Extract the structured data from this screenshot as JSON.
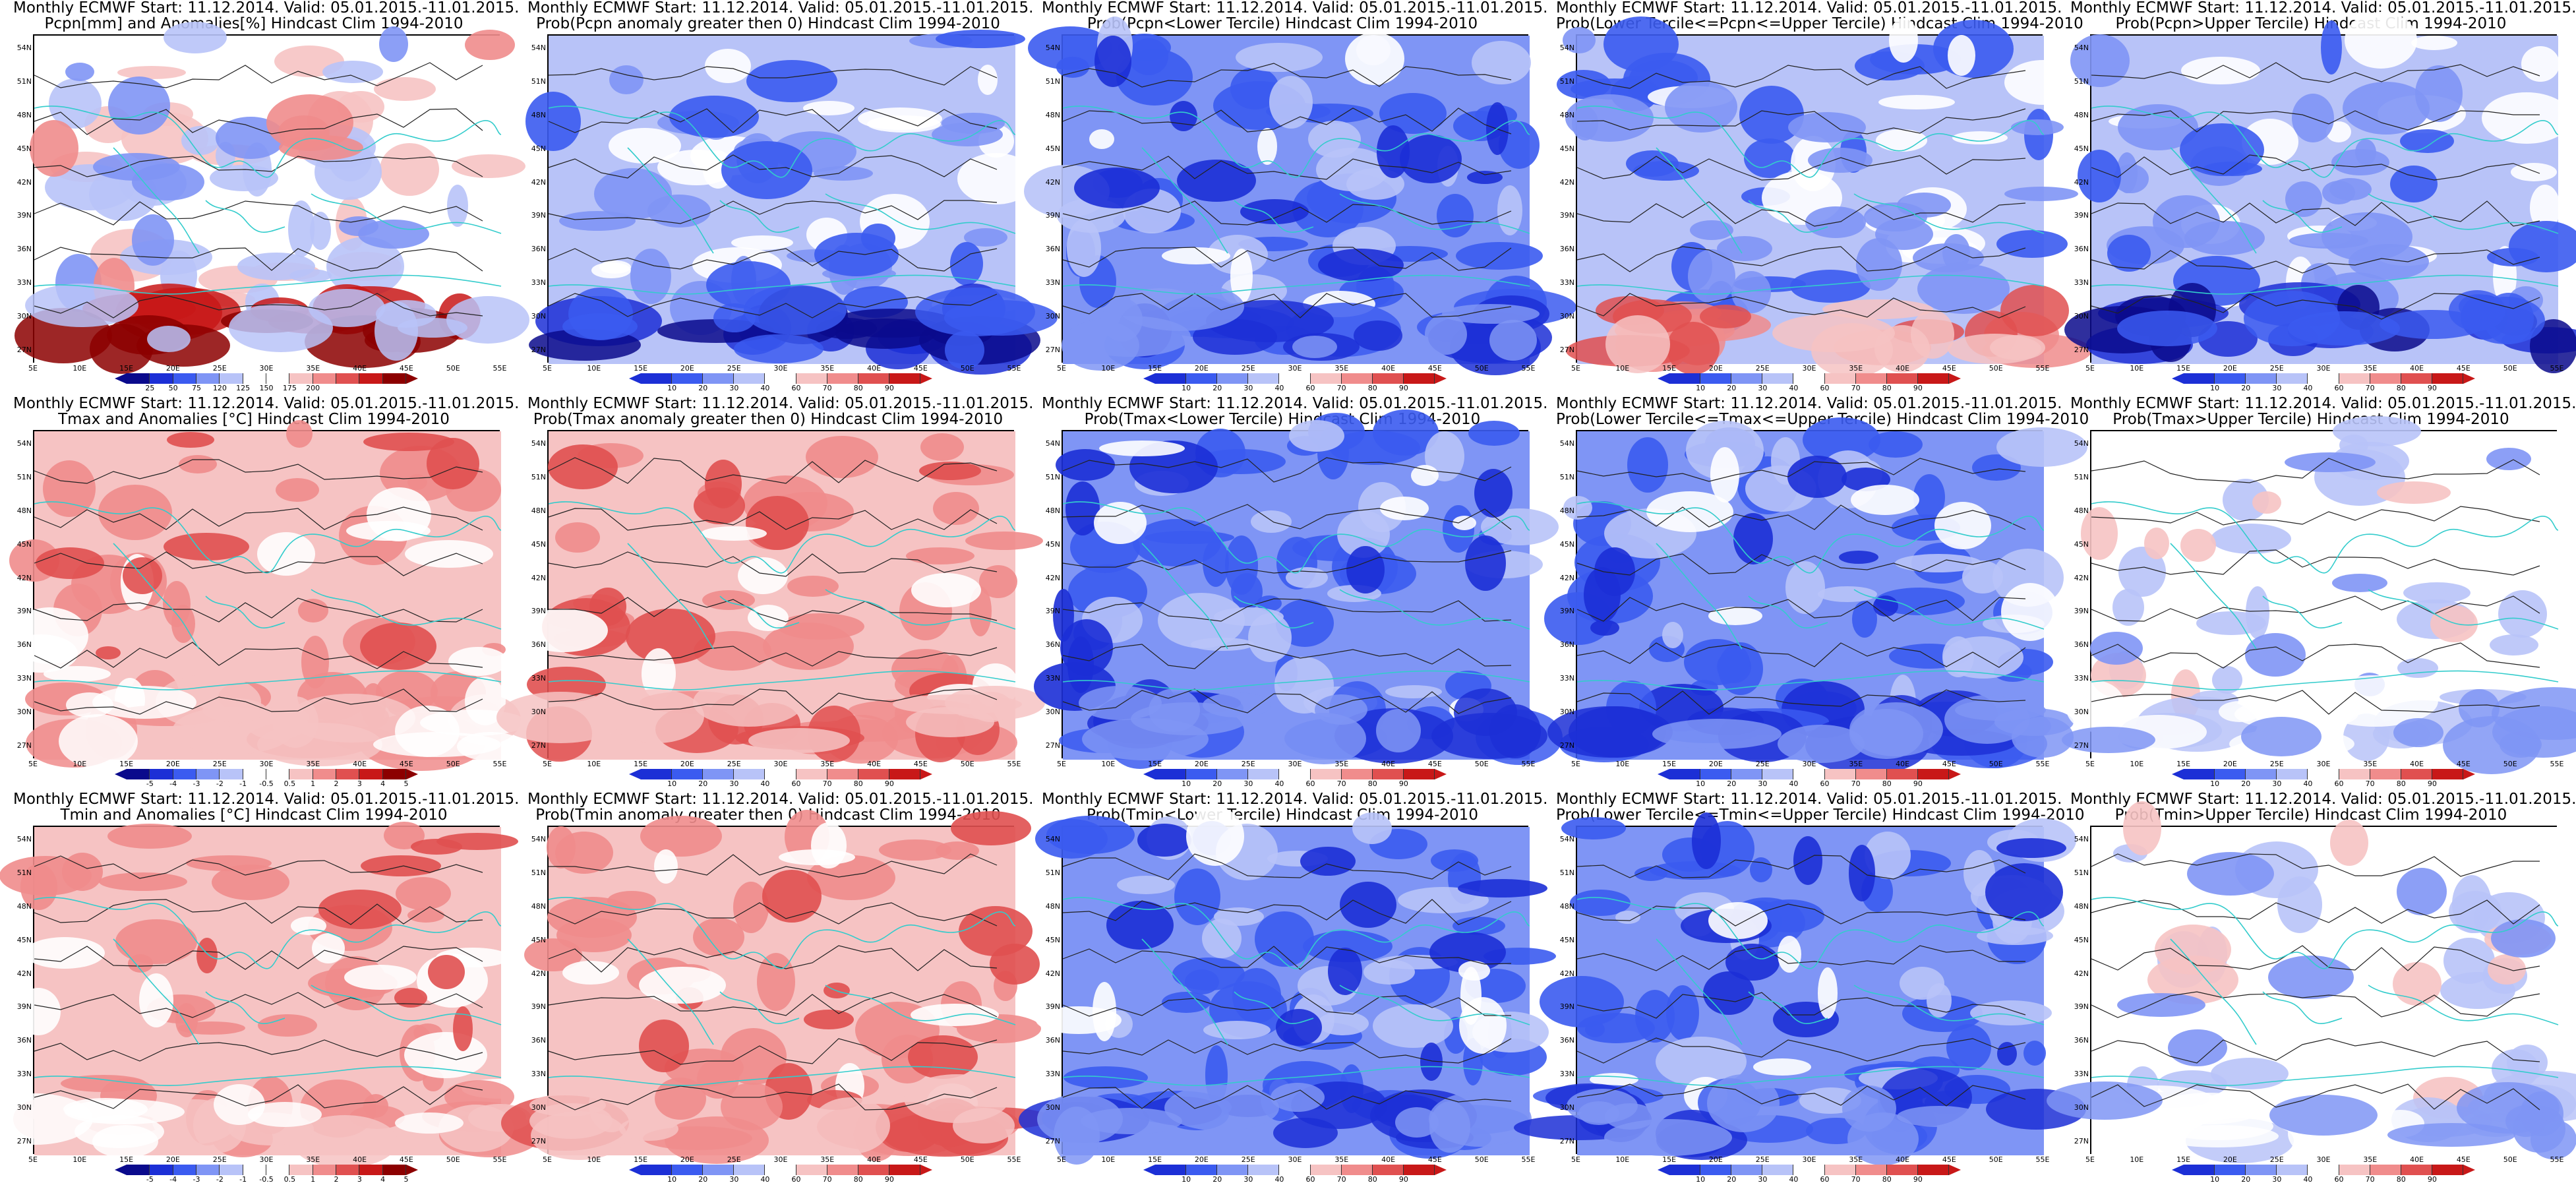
{
  "panels": [
    {
      "t1": "Monthly ECMWF Start: 11.12.2014. Valid: 05.01.2015.-11.01.2015.",
      "t2": "Pcpn[mm] and Anomalies[%] Hindcast Clim 1994-2010",
      "scheme": "anom_pcpn",
      "ticks": [
        "25",
        "50",
        "75",
        "120",
        "125",
        "150",
        "175",
        "200"
      ]
    },
    {
      "t1": "Monthly ECMWF Start: 11.12.2014. Valid: 05.01.2015.-11.01.2015.",
      "t2": "Prob(Pcpn anomaly greater then 0) Hindcast Clim 1994-2010",
      "scheme": "prob_blue",
      "ticks": [
        "10",
        "20",
        "30",
        "40",
        "60",
        "70",
        "80",
        "90"
      ]
    },
    {
      "t1": "Monthly ECMWF Start: 11.12.2014. Valid: 05.01.2015.-11.01.2015.",
      "t2": "Prob(Pcpn<Lower Tercile) Hindcast Clim 1994-2010",
      "scheme": "prob_deep",
      "ticks": [
        "10",
        "20",
        "30",
        "40",
        "60",
        "70",
        "80",
        "90"
      ]
    },
    {
      "t1": "Monthly ECMWF Start: 11.12.2014. Valid: 05.01.2015.-11.01.2015.",
      "t2": "Prob(Lower Tercile<=Pcpn<=Upper Tercile) Hindcast Clim 1994-2010",
      "scheme": "prob_mid",
      "ticks": [
        "10",
        "20",
        "30",
        "40",
        "60",
        "70",
        "80",
        "90"
      ]
    },
    {
      "t1": "Monthly ECMWF Start: 11.12.2014. Valid: 05.01.2015.-11.01.2015.",
      "t2": "Prob(Pcpn>Upper Tercile) Hindcast Clim 1994-2010",
      "scheme": "prob_blue",
      "ticks": [
        "10",
        "20",
        "30",
        "40",
        "60",
        "70",
        "80",
        "90"
      ]
    },
    {
      "t1": "Monthly ECMWF Start: 11.12.2014. Valid: 05.01.2015.-11.01.2015.",
      "t2": "Tmax and Anomalies [°C] Hindcast Clim 1994-2010",
      "scheme": "anom_red",
      "ticks": [
        "-5",
        "-4",
        "-3",
        "-2",
        "-1",
        "-0.5",
        "0.5",
        "1",
        "2",
        "3",
        "4",
        "5"
      ]
    },
    {
      "t1": "Monthly ECMWF Start: 11.12.2014. Valid: 05.01.2015.-11.01.2015.",
      "t2": "Prob(Tmax anomaly greater then 0) Hindcast Clim 1994-2010",
      "scheme": "prob_red",
      "ticks": [
        "10",
        "20",
        "30",
        "40",
        "60",
        "70",
        "80",
        "90"
      ]
    },
    {
      "t1": "Monthly ECMWF Start: 11.12.2014. Valid: 05.01.2015.-11.01.2015.",
      "t2": "Prob(Tmax<Lower Tercile) Hindcast Clim 1994-2010",
      "scheme": "prob_deep",
      "ticks": [
        "10",
        "20",
        "30",
        "40",
        "60",
        "70",
        "80",
        "90"
      ]
    },
    {
      "t1": "Monthly ECMWF Start: 11.12.2014. Valid: 05.01.2015.-11.01.2015.",
      "t2": "Prob(Lower Tercile<=Tmax<=Upper Tercile) Hindcast Clim 1994-2010",
      "scheme": "prob_deep",
      "ticks": [
        "10",
        "20",
        "30",
        "40",
        "60",
        "70",
        "80",
        "90"
      ]
    },
    {
      "t1": "Monthly ECMWF Start: 11.12.2014. Valid: 05.01.2015.-11.01.2015.",
      "t2": "Prob(Tmax>Upper Tercile) Hindcast Clim 1994-2010",
      "scheme": "prob_light",
      "ticks": [
        "10",
        "20",
        "30",
        "40",
        "60",
        "70",
        "80",
        "90"
      ]
    },
    {
      "t1": "Monthly ECMWF Start: 11.12.2014. Valid: 05.01.2015.-11.01.2015.",
      "t2": "Tmin and Anomalies [°C] Hindcast Clim 1994-2010",
      "scheme": "anom_red",
      "ticks": [
        "-5",
        "-4",
        "-3",
        "-2",
        "-1",
        "-0.5",
        "0.5",
        "1",
        "2",
        "3",
        "4",
        "5"
      ]
    },
    {
      "t1": "Monthly ECMWF Start: 11.12.2014. Valid: 05.01.2015.-11.01.2015.",
      "t2": "Prob(Tmin anomaly greater then 0) Hindcast Clim 1994-2010",
      "scheme": "prob_red",
      "ticks": [
        "10",
        "20",
        "30",
        "40",
        "60",
        "70",
        "80",
        "90"
      ]
    },
    {
      "t1": "Monthly ECMWF Start: 11.12.2014. Valid: 05.01.2015.-11.01.2015.",
      "t2": "Prob(Tmin<Lower Tercile) Hindcast Clim 1994-2010",
      "scheme": "prob_deep",
      "ticks": [
        "10",
        "20",
        "30",
        "40",
        "60",
        "70",
        "80",
        "90"
      ]
    },
    {
      "t1": "Monthly ECMWF Start: 11.12.2014. Valid: 05.01.2015.-11.01.2015.",
      "t2": "Prob(Lower Tercile<=Tmin<=Upper Tercile) Hindcast Clim 1994-2010",
      "scheme": "prob_deep",
      "ticks": [
        "10",
        "20",
        "30",
        "40",
        "60",
        "70",
        "80",
        "90"
      ]
    },
    {
      "t1": "Monthly ECMWF Start: 11.12.2014. Valid: 05.01.2015.-11.01.2015.",
      "t2": "Prob(Tmin>Upper Tercile) Hindcast Clim 1994-2010",
      "scheme": "prob_light",
      "ticks": [
        "10",
        "20",
        "30",
        "40",
        "60",
        "70",
        "80",
        "90"
      ]
    }
  ],
  "lat_labels": [
    "54N",
    "51N",
    "48N",
    "45N",
    "42N",
    "39N",
    "36N",
    "33N",
    "30N",
    "27N"
  ],
  "lon_labels": [
    "5E",
    "10E",
    "15E",
    "20E",
    "25E",
    "30E",
    "35E",
    "40E",
    "45E",
    "50E",
    "55E"
  ],
  "palettes": {
    "blue_red": [
      "#0a0a8c",
      "#1c2fd6",
      "#3b5bf0",
      "#7f95f5",
      "#b8c3f8",
      "#ffffff",
      "#ffffff",
      "#f6c3c3",
      "#f08c8c",
      "#e05050",
      "#c81818",
      "#8c0000"
    ],
    "prob": [
      "#1c2fd6",
      "#3b5bf0",
      "#7f95f5",
      "#b8c3f8",
      "#ffffff",
      "#f6c3c3",
      "#f08c8c",
      "#e05050",
      "#c81818"
    ],
    "coast": "#33cccc",
    "contour": "#222222"
  }
}
